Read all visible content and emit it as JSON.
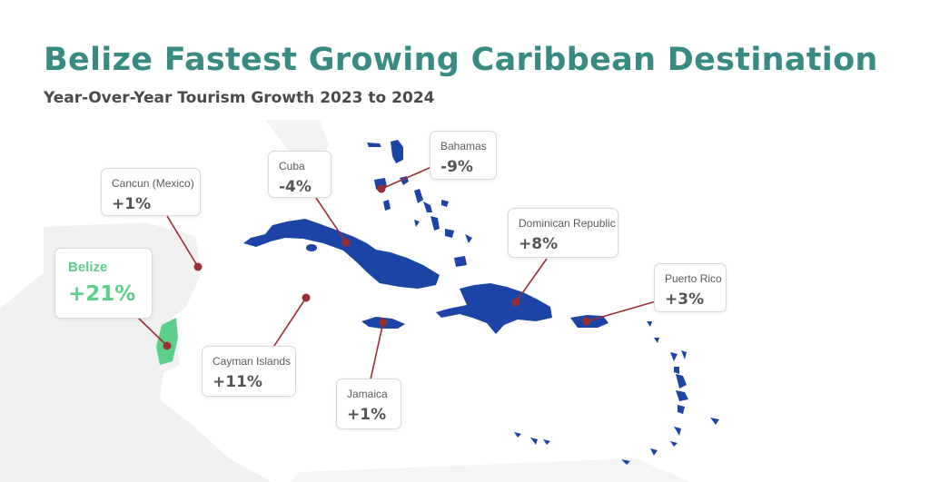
{
  "title": "Belize Fastest Growing Caribbean Destination",
  "subtitle": "Year-Over-Year Tourism Growth 2023 to 2024",
  "colors": {
    "title": "#3a8a84",
    "highlight": "#5ccf8a",
    "island": "#1c44a6",
    "land": "#f1f1f1",
    "leader": "#9b2d35"
  },
  "destinations": [
    {
      "name": "Cancun (Mexico)",
      "growth": "+1%"
    },
    {
      "name": "Belize",
      "growth": "+21%",
      "highlight": true
    },
    {
      "name": "Cuba",
      "growth": "-4%"
    },
    {
      "name": "Bahamas",
      "growth": "-9%"
    },
    {
      "name": "Dominican Republic",
      "growth": "+8%"
    },
    {
      "name": "Puerto Rico",
      "growth": "+3%"
    },
    {
      "name": "Cayman Islands",
      "growth": "+11%"
    },
    {
      "name": "Jamaica",
      "growth": "+1%"
    }
  ]
}
